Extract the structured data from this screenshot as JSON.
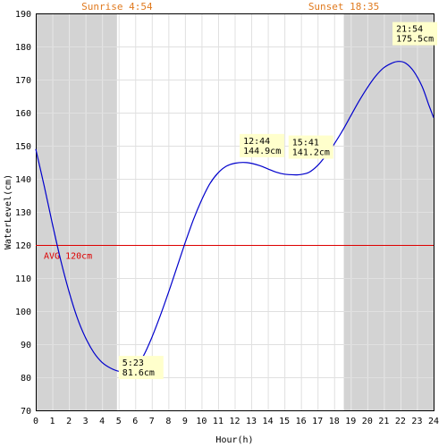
{
  "chart_data": {
    "type": "line",
    "xlabel": "Hour(h)",
    "ylabel": "WaterLevel(cm)",
    "xlim": [
      0,
      24
    ],
    "ylim": [
      70,
      190
    ],
    "xticks": [
      "0",
      "1",
      "2",
      "3",
      "4",
      "5",
      "6",
      "7",
      "8",
      "9",
      "10",
      "11",
      "12",
      "13",
      "14",
      "15",
      "16",
      "17",
      "18",
      "19",
      "20",
      "21",
      "22",
      "23",
      "24"
    ],
    "yticks": [
      "70",
      "80",
      "90",
      "100",
      "110",
      "120",
      "130",
      "140",
      "150",
      "160",
      "170",
      "180",
      "190"
    ],
    "grid": true,
    "sunrise": {
      "label": "Sunrise 4:54",
      "hour": 4.9
    },
    "sunset": {
      "label": "Sunset 18:35",
      "hour": 18.583
    },
    "average": {
      "label": "AVG 120cm",
      "value": 120
    },
    "series": [
      {
        "color": "#0000cc",
        "points": [
          [
            0,
            149.0
          ],
          [
            0.5,
            138.0
          ],
          [
            1,
            126.5
          ],
          [
            1.5,
            115.5
          ],
          [
            2,
            106.0
          ],
          [
            2.5,
            98.0
          ],
          [
            3,
            92.0
          ],
          [
            3.5,
            87.5
          ],
          [
            4,
            84.5
          ],
          [
            4.5,
            82.8
          ],
          [
            5,
            81.8
          ],
          [
            5.383,
            81.6
          ],
          [
            5.75,
            82.0
          ],
          [
            6,
            83.0
          ],
          [
            6.5,
            86.5
          ],
          [
            7,
            92.0
          ],
          [
            7.5,
            98.5
          ],
          [
            8,
            105.5
          ],
          [
            8.5,
            113.0
          ],
          [
            9,
            120.5
          ],
          [
            9.5,
            127.5
          ],
          [
            10,
            133.5
          ],
          [
            10.5,
            138.5
          ],
          [
            11,
            141.8
          ],
          [
            11.5,
            143.8
          ],
          [
            12,
            144.7
          ],
          [
            12.733,
            144.9
          ],
          [
            13.5,
            144.0
          ],
          [
            14,
            143.0
          ],
          [
            14.5,
            142.0
          ],
          [
            15,
            141.4
          ],
          [
            15.683,
            141.2
          ],
          [
            16,
            141.3
          ],
          [
            16.5,
            142.0
          ],
          [
            17,
            144.0
          ],
          [
            17.5,
            147.0
          ],
          [
            18,
            150.5
          ],
          [
            18.5,
            154.5
          ],
          [
            19,
            159.0
          ],
          [
            19.5,
            163.5
          ],
          [
            20,
            167.5
          ],
          [
            20.5,
            171.0
          ],
          [
            21,
            173.6
          ],
          [
            21.5,
            175.0
          ],
          [
            21.9,
            175.5
          ],
          [
            22.3,
            175.0
          ],
          [
            22.8,
            172.5
          ],
          [
            23.3,
            168.0
          ],
          [
            23.7,
            162.5
          ],
          [
            24,
            158.5
          ]
        ]
      }
    ],
    "annotations": [
      {
        "time": "5:23",
        "value": "81.6cm",
        "x": 5.383,
        "y": 81.6
      },
      {
        "time": "12:44",
        "value": "144.9cm",
        "x": 12.733,
        "y": 144.9
      },
      {
        "time": "15:41",
        "value": "141.2cm",
        "x": 15.683,
        "y": 141.2
      },
      {
        "time": "21:54",
        "value": "175.5cm",
        "x": 21.9,
        "y": 175.5
      }
    ],
    "colors": {
      "night": "#d3d3d3",
      "grid_day": "#e0e0e0",
      "grid_night": "#e8e8e8",
      "line": "#0000cc",
      "average": "#dd0000",
      "sun_text": "#e07a1f",
      "annotation_bg": "#ffffcc"
    }
  }
}
